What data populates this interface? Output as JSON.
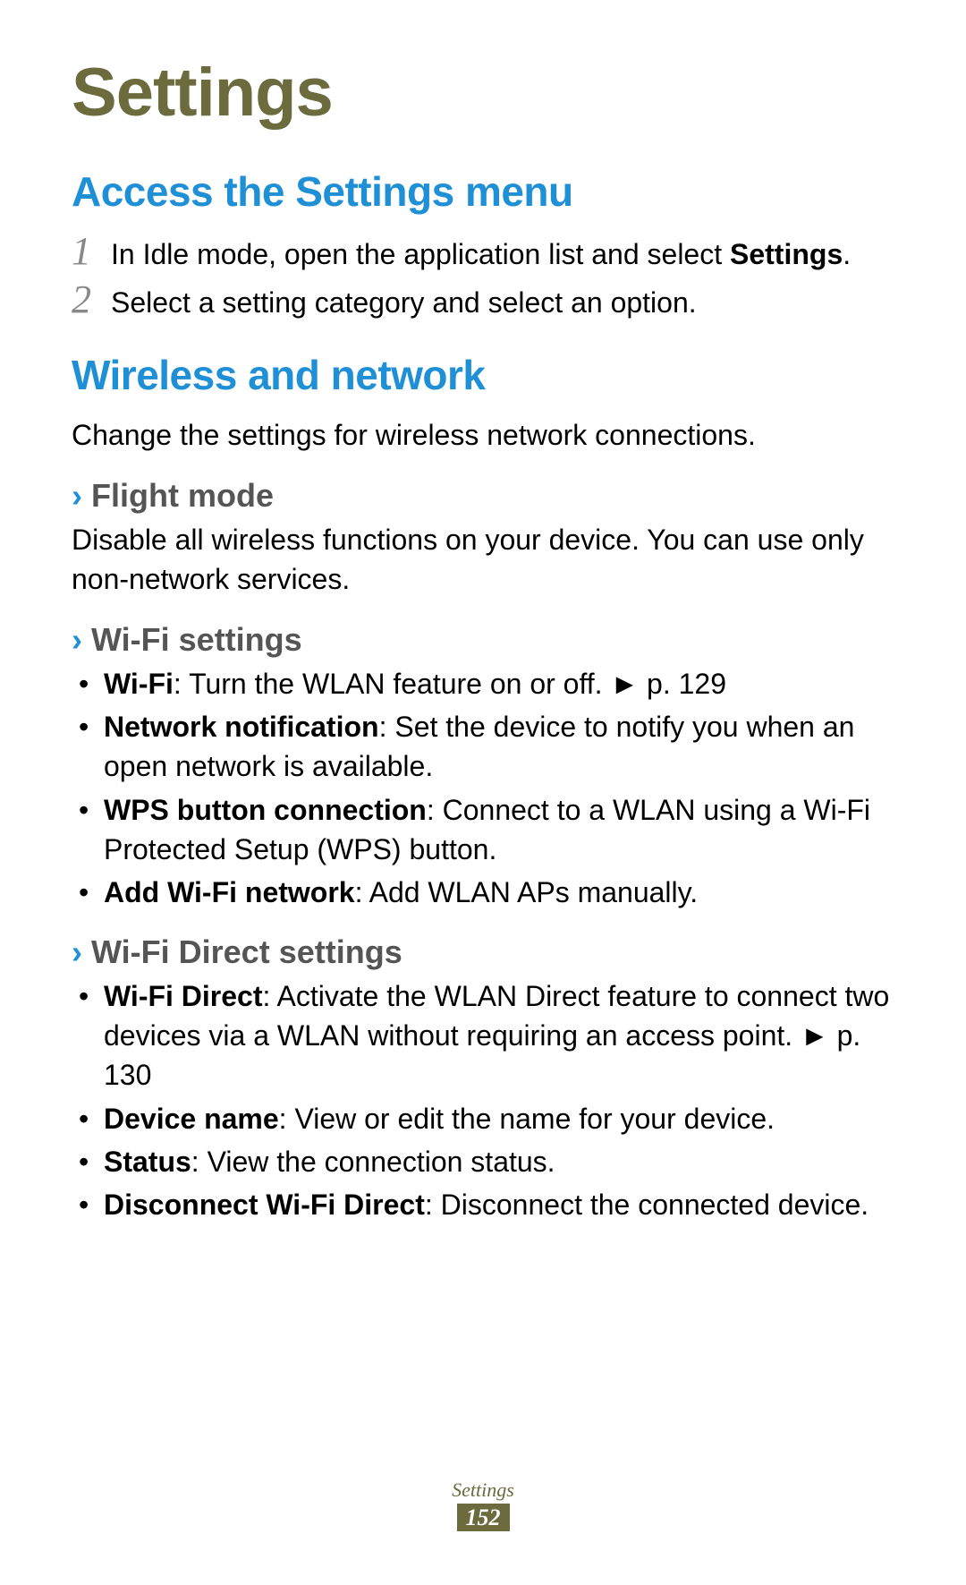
{
  "colors": {
    "title": "#6b6b3e",
    "section_heading": "#1f8fd6",
    "subheading_text": "#555555",
    "chevron": "#1f8fd6",
    "step_number": "#888888",
    "body_text": "#000000",
    "page_num_bg": "#6b6b3e",
    "page_num_text": "#ffffff",
    "background": "#ffffff"
  },
  "typography": {
    "title_fontsize": 76,
    "section_fontsize": 46,
    "subheading_fontsize": 36,
    "body_fontsize": 32,
    "footer_label_fontsize": 22,
    "page_num_fontsize": 26
  },
  "title": "Settings",
  "section1": {
    "heading": "Access the Settings menu",
    "steps": [
      {
        "num": "1",
        "text_head": "In Idle mode, open the application list and select ",
        "text_bold": "Settings",
        "text_tail": "."
      },
      {
        "num": "2",
        "text_head": "Select a setting category and select an option.",
        "text_bold": "",
        "text_tail": ""
      }
    ]
  },
  "section2": {
    "heading": "Wireless and network",
    "intro": "Change the settings for wireless network connections.",
    "sub1": {
      "chevron": "›",
      "title": "Flight mode",
      "text": "Disable all wireless functions on your device. You can use only non-network services."
    },
    "sub2": {
      "chevron": "›",
      "title": "Wi-Fi settings",
      "items": [
        {
          "bold": "Wi-Fi",
          "rest": ": Turn the WLAN feature on or off. ► p. 129"
        },
        {
          "bold": "Network notification",
          "rest": ": Set the device to notify you when an open network is available."
        },
        {
          "bold": "WPS button connection",
          "rest": ": Connect to a WLAN using a Wi-Fi Protected Setup (WPS) button."
        },
        {
          "bold": "Add Wi-Fi network",
          "rest": ": Add WLAN APs manually."
        }
      ]
    },
    "sub3": {
      "chevron": "›",
      "title": "Wi-Fi Direct settings",
      "items": [
        {
          "bold": "Wi-Fi Direct",
          "rest": ": Activate the WLAN Direct feature to connect two devices via a WLAN without requiring an access point. ► p. 130"
        },
        {
          "bold": "Device name",
          "rest": ": View or edit the name for your device."
        },
        {
          "bold": "Status",
          "rest": ": View the connection status."
        },
        {
          "bold": "Disconnect Wi-Fi Direct",
          "rest": ": Disconnect the connected device."
        }
      ]
    }
  },
  "footer": {
    "label": "Settings",
    "page_number": "152"
  }
}
